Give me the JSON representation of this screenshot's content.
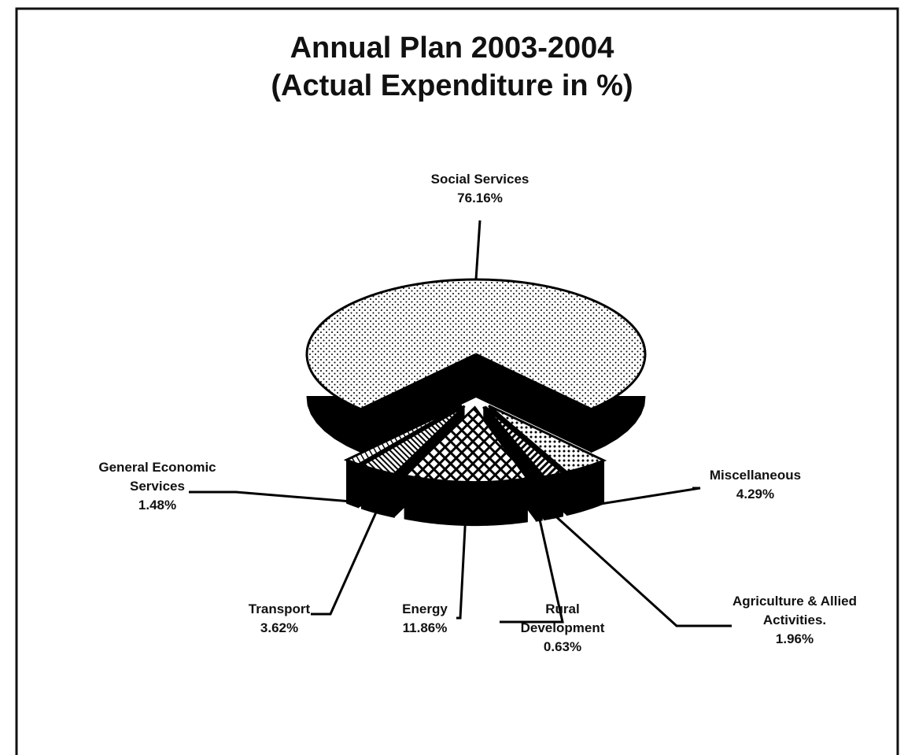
{
  "chart_data": {
    "type": "pie",
    "title": "Annual Plan 2003-2004",
    "subtitle": "(Actual Expenditure in %)",
    "categories": [
      "Social Services",
      "Miscellaneous",
      "Agriculture & Allied Activities.",
      "Rural Development",
      "Energy",
      "Transport",
      "General Economic Services"
    ],
    "values": [
      76.16,
      4.29,
      1.96,
      0.63,
      11.86,
      3.62,
      1.48
    ],
    "value_labels": [
      "76.16%",
      "4.29%",
      "1.96%",
      "0.63%",
      "11.86%",
      "3.62%",
      "1.48%"
    ]
  }
}
